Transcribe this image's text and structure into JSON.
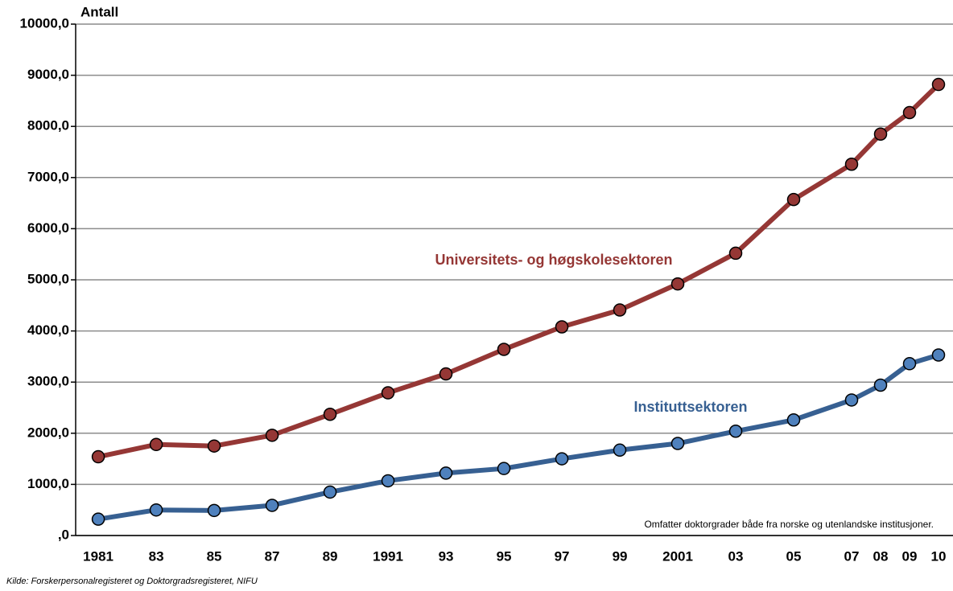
{
  "chart_data": {
    "type": "line",
    "y_label": "Antall",
    "annotation": "Omfatter doktorgrader både fra norske og utenlandske institusjoner.",
    "source": "Kilde: Forskerpersonalregisteret og Doktorgradsregisteret, NIFU",
    "x": [
      1981,
      1983,
      1985,
      1987,
      1989,
      1991,
      1993,
      1995,
      1997,
      1999,
      2001,
      2003,
      2005,
      2007,
      2008,
      2009,
      2010
    ],
    "xlim": [
      1980.22,
      2010.5
    ],
    "xticks": [
      {
        "value": 1981,
        "label": "1981"
      },
      {
        "value": 1983,
        "label": "83"
      },
      {
        "value": 1985,
        "label": "85"
      },
      {
        "value": 1987,
        "label": "87"
      },
      {
        "value": 1989,
        "label": "89"
      },
      {
        "value": 1991,
        "label": "1991"
      },
      {
        "value": 1993,
        "label": "93"
      },
      {
        "value": 1995,
        "label": "95"
      },
      {
        "value": 1997,
        "label": "97"
      },
      {
        "value": 1999,
        "label": "99"
      },
      {
        "value": 2001,
        "label": "2001"
      },
      {
        "value": 2003,
        "label": "03"
      },
      {
        "value": 2005,
        "label": "05"
      },
      {
        "value": 2007,
        "label": "07"
      },
      {
        "value": 2008,
        "label": "08"
      },
      {
        "value": 2009,
        "label": "09"
      },
      {
        "value": 2010,
        "label": "10"
      }
    ],
    "ylim": [
      0,
      10000
    ],
    "yticks": [
      {
        "value": 0,
        "label": ",0"
      },
      {
        "value": 1000,
        "label": "1000,0"
      },
      {
        "value": 2000,
        "label": "2000,0"
      },
      {
        "value": 3000,
        "label": "3000,0"
      },
      {
        "value": 4000,
        "label": "4000,0"
      },
      {
        "value": 5000,
        "label": "5000,0"
      },
      {
        "value": 6000,
        "label": "6000,0"
      },
      {
        "value": 7000,
        "label": "7000,0"
      },
      {
        "value": 8000,
        "label": "8000,0"
      },
      {
        "value": 9000,
        "label": "9000,0"
      },
      {
        "value": 10000,
        "label": "10000,0"
      }
    ],
    "grid": true,
    "series": [
      {
        "name": "Universitets- og høgskolesektoren",
        "color": "#953735",
        "marker_color": "#953735",
        "values": [
          1540,
          1780,
          1750,
          1960,
          2370,
          2790,
          3160,
          3640,
          4080,
          4410,
          4920,
          5520,
          6570,
          7260,
          7850,
          8270,
          8820
        ]
      },
      {
        "name": "Instituttsektoren",
        "color": "#376092",
        "marker_color": "#4f81bd",
        "values": [
          320,
          500,
          490,
          590,
          850,
          1070,
          1220,
          1310,
          1500,
          1670,
          1800,
          2040,
          2260,
          2650,
          2940,
          3360,
          3530
        ]
      }
    ]
  }
}
